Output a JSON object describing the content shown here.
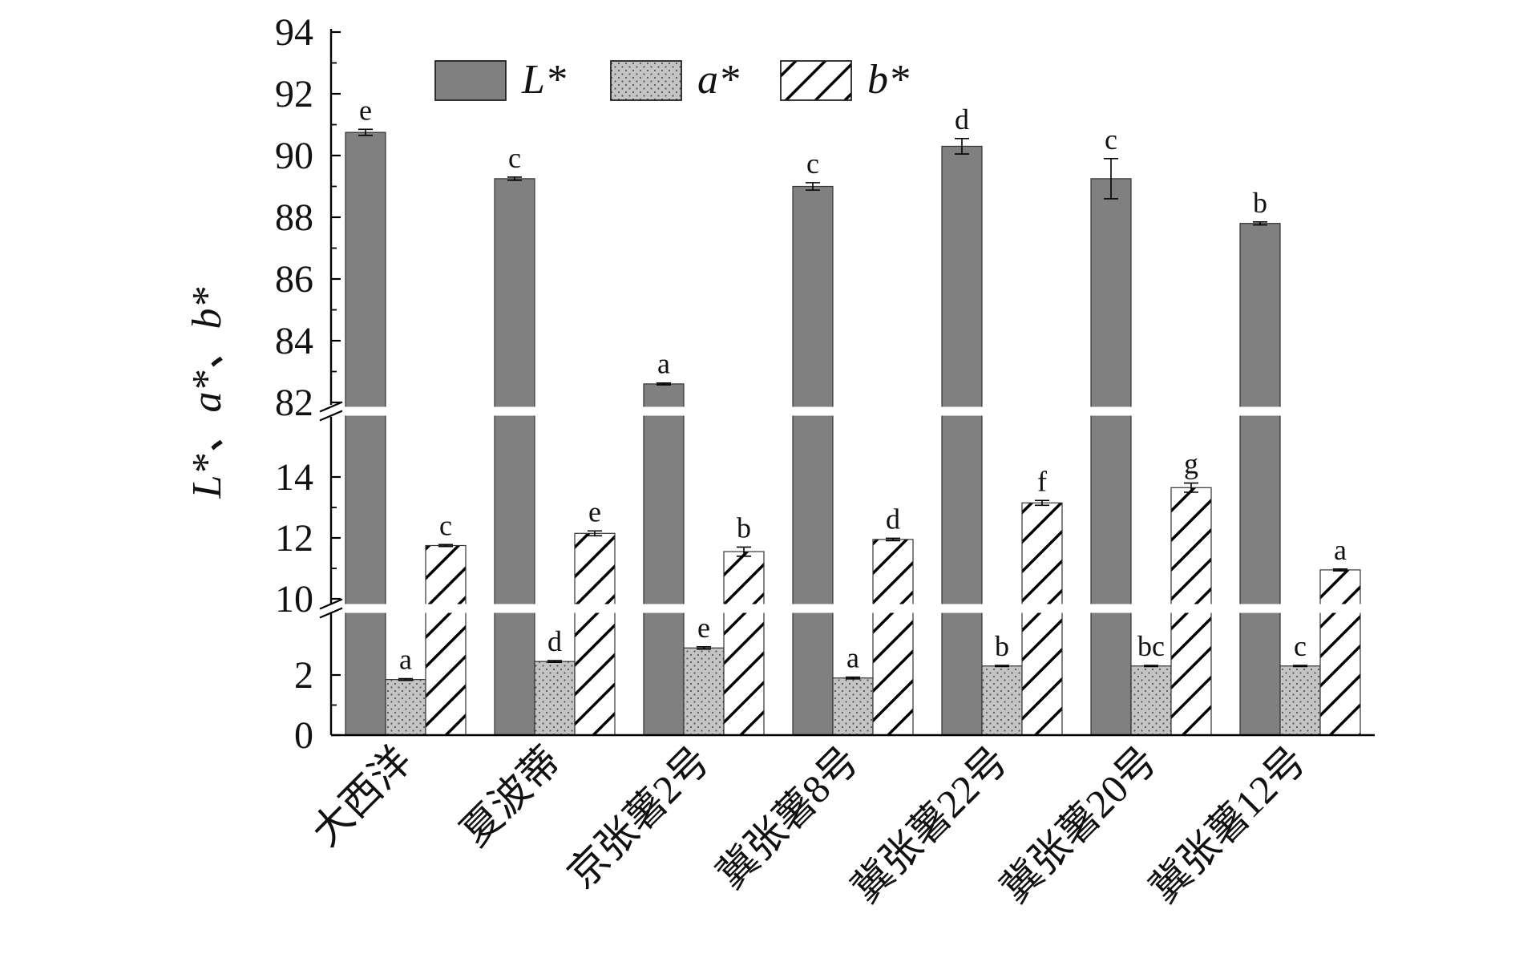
{
  "chart_data": {
    "type": "bar",
    "ylabel": "L*、a*、b*",
    "categories": [
      "大西洋",
      "夏波蒂",
      "京张薯2号",
      "冀张薯8号",
      "冀张薯22号",
      "冀张薯20号",
      "冀张薯12号"
    ],
    "series": [
      {
        "name": "L*",
        "color": "#808080",
        "pattern": "solid",
        "values": [
          90.75,
          89.25,
          82.6,
          89.0,
          90.3,
          89.25,
          87.8
        ],
        "errors": [
          0.1,
          0.05,
          0.03,
          0.12,
          0.25,
          0.65,
          0.05
        ],
        "letters": [
          "e",
          "c",
          "a",
          "c",
          "d",
          "c",
          "b"
        ]
      },
      {
        "name": "a*",
        "color": "#bfbfbf",
        "pattern": "dots",
        "values": [
          1.85,
          2.45,
          2.9,
          1.9,
          2.3,
          2.3,
          2.3
        ],
        "errors": [
          0.03,
          0.03,
          0.04,
          0.03,
          0.02,
          0.02,
          0.02
        ],
        "letters": [
          "a",
          "d",
          "e",
          "a",
          "b",
          "bc",
          "c"
        ]
      },
      {
        "name": "b*",
        "color": "#ffffff",
        "pattern": "hatch",
        "values": [
          11.75,
          12.15,
          11.55,
          11.95,
          13.15,
          13.65,
          10.95
        ],
        "errors": [
          0.03,
          0.08,
          0.15,
          0.04,
          0.08,
          0.15,
          0.03
        ],
        "letters": [
          "c",
          "e",
          "b",
          "d",
          "f",
          "g",
          "a"
        ]
      }
    ],
    "axis": {
      "segments": [
        {
          "range": [
            0,
            4
          ],
          "ticks": [
            0,
            2
          ]
        },
        {
          "range": [
            10,
            16
          ],
          "ticks": [
            10,
            12,
            14
          ]
        },
        {
          "range": [
            82,
            94
          ],
          "ticks": [
            82,
            84,
            86,
            88,
            90,
            92,
            94
          ]
        }
      ],
      "break_between": [
        [
          4,
          10
        ],
        [
          16,
          82
        ]
      ]
    },
    "legend_position": "top-center",
    "grid": false
  }
}
